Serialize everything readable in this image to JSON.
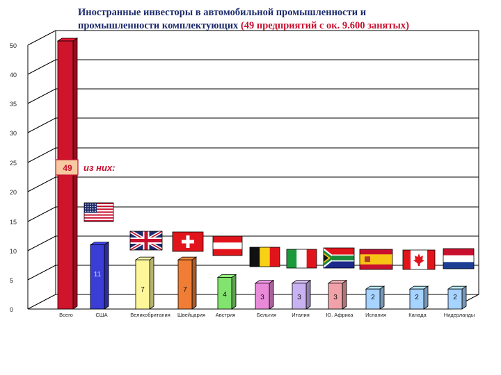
{
  "chart_data": {
    "type": "bar",
    "title": "Иностранные инвесторы в автомобильной промышленности и",
    "title_line2": "промышленности комплектующих",
    "title_extra": "(49 предприятий с ок. 9.600 занятых)",
    "xlabel": "",
    "ylabel": "",
    "yticks": [
      0,
      5,
      10,
      15,
      20,
      25,
      30,
      35,
      40,
      50
    ],
    "grid": true,
    "legend": "none",
    "categories": [
      "Всего",
      "США",
      "Великобритания",
      "Швейцария",
      "Австрия",
      "Бельгия",
      "Италия",
      "Ю. Африка",
      "Испания",
      "Канада",
      "Нидерланды"
    ],
    "values": [
      49,
      11,
      7,
      7,
      4,
      3,
      3,
      3,
      2,
      2,
      2
    ],
    "data_labels": [
      "",
      "11",
      "7",
      "7",
      "4",
      "3",
      "3",
      "3",
      "2",
      "2",
      "2"
    ],
    "bar_colors": [
      "#d0142c",
      "#3a3ed6",
      "#fdf79a",
      "#f07d35",
      "#82e36e",
      "#e98ad9",
      "#c9b2f1",
      "#f1a2a8",
      "#a6d3ff",
      "#a6d3ff",
      "#a6d3ff"
    ],
    "flags": [
      "",
      "us-flag-icon",
      "uk-flag-icon",
      "swiss-flag-icon",
      "austria-flag-icon",
      "belgium-flag-icon",
      "italy-flag-icon",
      "south-africa-flag-icon",
      "spain-flag-icon",
      "canada-flag-icon",
      "netherlands-flag-icon"
    ],
    "callout": {
      "value": "49",
      "text": "из них:"
    }
  }
}
